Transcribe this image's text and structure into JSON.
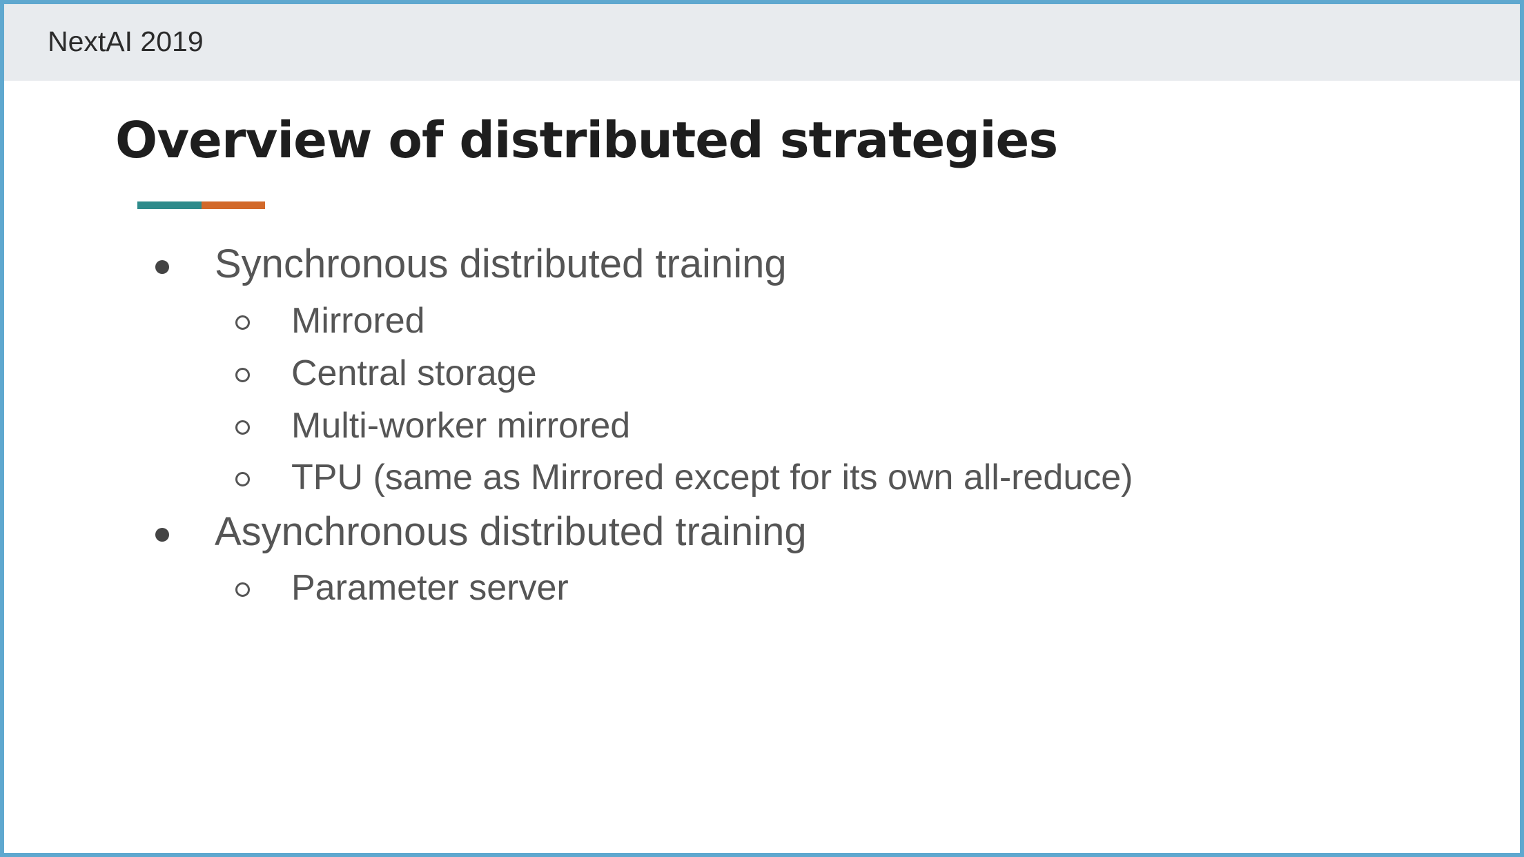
{
  "slide": {
    "event_label": "NextAI 2019",
    "title": "Overview of distributed strategies",
    "accent_colors": [
      "#2e8b8b",
      "#d2692a"
    ],
    "bullets": [
      {
        "text": "Synchronous distributed training",
        "children": [
          "Mirrored",
          "Central storage",
          "Multi-worker mirrored",
          "TPU (same as Mirrored except for its own all-reduce)"
        ]
      },
      {
        "text": "Asynchronous distributed training",
        "children": [
          "Parameter server"
        ]
      }
    ]
  }
}
